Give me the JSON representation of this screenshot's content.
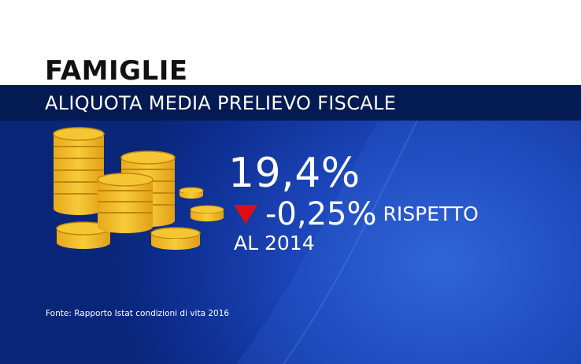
{
  "header": {
    "title": "FAMIGLIE",
    "subtitle": "ALIQUOTA MEDIA PRELIEVO FISCALE"
  },
  "stat": {
    "value": "19,4%",
    "change": "-0,25%",
    "change_label": "RISPETTO",
    "year_line": "AL 2014",
    "direction_icon": "triangle-down-icon"
  },
  "source": "Fonte: Rapporto Istat condizioni di vita 2016",
  "colors": {
    "background": "#1b45b8",
    "band": "#041a52",
    "coin": "#f2be24",
    "down_arrow": "#e10d14"
  },
  "icons": {
    "coins": "coin-stacks-icon"
  }
}
